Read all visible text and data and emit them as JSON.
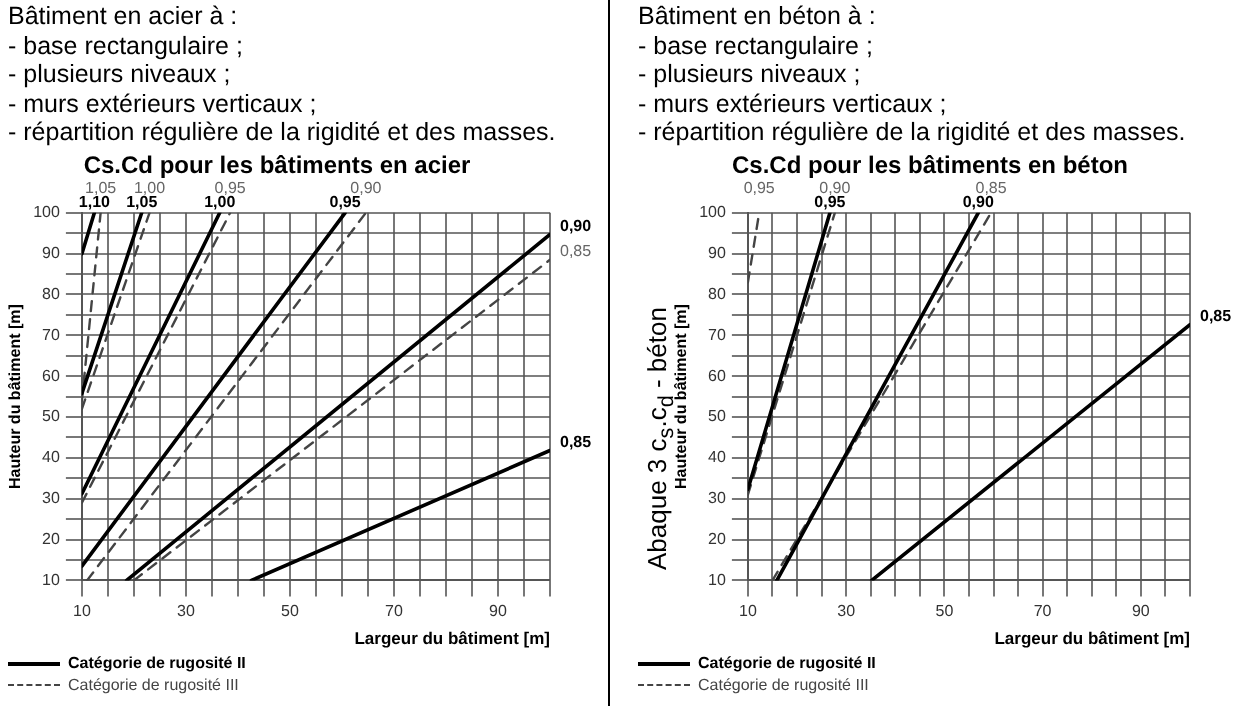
{
  "chart_data": [
    {
      "type": "line",
      "title": "Cs.Cd pour les bâtiments en acier",
      "xlabel": "Largeur du bâtiment [m]",
      "ylabel": "Hauteur du bâtiment [m]",
      "annotations": [
        "Bâtiment en acier à :",
        "- base rectangulaire ;",
        "- plusieurs niveaux ;",
        "- murs extérieurs verticaux ;",
        "- répartition régulière de la rigidité et des masses.",
        "Catégorie de rugosité II",
        "Catégorie de rugosité III"
      ],
      "xlim": [
        10,
        100
      ],
      "ylim": [
        10,
        100
      ],
      "xticks": [
        10,
        {
          "value": 15,
          "label": null
        },
        {
          "value": 20,
          "label": null
        },
        {
          "value": 25,
          "label": null
        },
        30,
        {
          "value": 35,
          "label": null
        },
        {
          "value": 40,
          "label": null
        },
        {
          "value": 45,
          "label": null
        },
        50,
        {
          "value": 55,
          "label": null
        },
        {
          "value": 60,
          "label": null
        },
        {
          "value": 65,
          "label": null
        },
        70,
        {
          "value": 75,
          "label": null
        },
        {
          "value": 80,
          "label": null
        },
        {
          "value": 85,
          "label": null
        },
        90,
        {
          "value": 95,
          "label": null
        },
        {
          "value": 100,
          "label": null
        }
      ],
      "yticks": [
        10,
        {
          "value": 15,
          "label": null
        },
        20,
        {
          "value": 25,
          "label": null
        },
        30,
        {
          "value": 35,
          "label": null
        },
        40,
        {
          "value": 45,
          "label": null
        },
        50,
        {
          "value": 55,
          "label": null
        },
        60,
        {
          "value": 65,
          "label": null
        },
        70,
        {
          "value": 75,
          "label": null
        },
        80,
        {
          "value": 85,
          "label": null
        },
        90,
        {
          "value": 95,
          "label": null
        },
        100
      ],
      "grid": true,
      "marker": "none",
      "series": [
        {
          "name": "1,10",
          "color": "#000000",
          "line_style": "solid",
          "x": [
            10,
            12.4
          ],
          "values": [
            90,
            100
          ]
        },
        {
          "name": "1,05",
          "color": "#000000",
          "line_style": "solid",
          "x": [
            10,
            21.5
          ],
          "values": [
            55.8,
            100
          ]
        },
        {
          "name": "1,00",
          "color": "#000000",
          "line_style": "solid",
          "x": [
            10,
            36.5
          ],
          "values": [
            31.2,
            100
          ]
        },
        {
          "name": "0,95",
          "color": "#000000",
          "line_style": "solid",
          "x": [
            10,
            60.6
          ],
          "values": [
            13.5,
            100
          ]
        },
        {
          "name": "0,90",
          "color": "#000000",
          "line_style": "solid",
          "x": [
            18.6,
            100
          ],
          "values": [
            10,
            94.7
          ]
        },
        {
          "name": "0,85",
          "color": "#000000",
          "line_style": "solid",
          "x": [
            42.6,
            100
          ],
          "values": [
            10,
            41.8
          ]
        },
        {
          "name": "1,05",
          "color": "#444444",
          "line_style": "dashed",
          "x": [
            10,
            13.6
          ],
          "values": [
            54,
            100
          ]
        },
        {
          "name": "1,00",
          "color": "#444444",
          "line_style": "dashed",
          "x": [
            10,
            23
          ],
          "values": [
            52,
            100
          ]
        },
        {
          "name": "0,95",
          "color": "#444444",
          "line_style": "dashed",
          "x": [
            10,
            38.5
          ],
          "values": [
            29,
            100
          ]
        },
        {
          "name": "0,90",
          "color": "#444444",
          "line_style": "dashed",
          "x": [
            11,
            64.6
          ],
          "values": [
            10,
            100
          ]
        },
        {
          "name": "0,85",
          "color": "#444444",
          "line_style": "dashed",
          "x": [
            20,
            100
          ],
          "values": [
            10,
            88.5
          ]
        }
      ]
    },
    {
      "type": "line",
      "title": "Cs.Cd pour les bâtiments en béton",
      "xlabel": "Largeur du bâtiment [m]",
      "ylabel": "Hauteur du bâtiment [m]",
      "annotations": [
        "Bâtiment en béton à :",
        "- base rectangulaire ;",
        "- plusieurs niveaux ;",
        "- murs extérieurs verticaux ;",
        "- répartition régulière de la rigidité et des masses.",
        "Catégorie de rugosité II",
        "Catégorie de rugosité III",
        "Abaque 3 c$_{s}$.c$_{d}$ - béton"
      ],
      "xlim": [
        10,
        100
      ],
      "ylim": [
        10,
        100
      ],
      "xticks": [
        10,
        {
          "value": 15,
          "label": null
        },
        {
          "value": 20,
          "label": null
        },
        {
          "value": 25,
          "label": null
        },
        30,
        {
          "value": 35,
          "label": null
        },
        {
          "value": 40,
          "label": null
        },
        {
          "value": 45,
          "label": null
        },
        50,
        {
          "value": 55,
          "label": null
        },
        {
          "value": 60,
          "label": null
        },
        {
          "value": 65,
          "label": null
        },
        70,
        {
          "value": 75,
          "label": null
        },
        {
          "value": 80,
          "label": null
        },
        {
          "value": 85,
          "label": null
        },
        90,
        {
          "value": 95,
          "label": null
        },
        {
          "value": 100,
          "label": null
        }
      ],
      "yticks": [
        10,
        {
          "value": 15,
          "label": null
        },
        20,
        {
          "value": 25,
          "label": null
        },
        30,
        {
          "value": 35,
          "label": null
        },
        40,
        {
          "value": 45,
          "label": null
        },
        50,
        {
          "value": 55,
          "label": null
        },
        60,
        {
          "value": 65,
          "label": null
        },
        70,
        {
          "value": 75,
          "label": null
        },
        80,
        {
          "value": 85,
          "label": null
        },
        90,
        {
          "value": 95,
          "label": null
        },
        100
      ],
      "grid": true,
      "marker": "none",
      "series": [
        {
          "name": "0,95",
          "color": "#000000",
          "line_style": "solid",
          "x": [
            10,
            26.7
          ],
          "values": [
            32.3,
            100
          ]
        },
        {
          "name": "0,90",
          "color": "#000000",
          "line_style": "solid",
          "x": [
            15.9,
            56.9
          ],
          "values": [
            10,
            100
          ]
        },
        {
          "name": "0,85",
          "color": "#000000",
          "line_style": "solid",
          "x": [
            35.2,
            100
          ],
          "values": [
            10,
            72.6
          ]
        },
        {
          "name": "0,95",
          "color": "#444444",
          "line_style": "dashed",
          "x": [
            10,
            12.3
          ],
          "values": [
            83,
            100
          ]
        },
        {
          "name": "0,90",
          "color": "#444444",
          "line_style": "dashed",
          "x": [
            10,
            27.7
          ],
          "values": [
            31,
            100
          ]
        },
        {
          "name": "0,85",
          "color": "#444444",
          "line_style": "dashed",
          "x": [
            15,
            59.5
          ],
          "values": [
            10,
            100
          ]
        }
      ]
    }
  ]
}
